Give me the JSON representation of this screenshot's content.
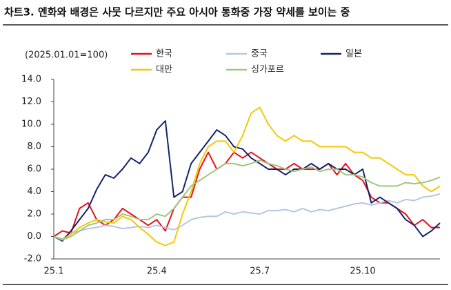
{
  "chart_data": {
    "type": "line",
    "title": "차트3. 엔화와 배경은 사뭇 다르지만 주요 아시아 통화중 가장 약세를 보이는 중",
    "subtitle": "(2025.01.01=100)",
    "categories": [
      "25.1",
      null,
      null,
      null,
      null,
      null,
      null,
      null,
      null,
      null,
      null,
      null,
      "25.4",
      null,
      null,
      null,
      null,
      null,
      null,
      null,
      null,
      null,
      null,
      null,
      "25.7",
      null,
      null,
      null,
      null,
      null,
      null,
      null,
      null,
      null,
      null,
      null,
      "25.10",
      null,
      null,
      null,
      null,
      null,
      null,
      null,
      null,
      null
    ],
    "ylim": [
      -2,
      14
    ],
    "yticks": [
      {
        "value": -2,
        "label": "-2.0"
      },
      {
        "value": 0,
        "label": "0.0"
      },
      {
        "value": 2,
        "label": "2.0"
      },
      {
        "value": 4,
        "label": "4.0"
      },
      {
        "value": 6,
        "label": "6.0"
      },
      {
        "value": 8,
        "label": "8.0"
      },
      {
        "value": 10,
        "label": "10.0"
      },
      {
        "value": 12,
        "label": "12.0"
      },
      {
        "value": 14,
        "label": "14.0"
      }
    ],
    "series": [
      {
        "name": "한국",
        "color": "#e8101a",
        "values": [
          0,
          0.5,
          0.3,
          2.5,
          3.0,
          1.5,
          1.0,
          1.5,
          2.5,
          2.0,
          1.5,
          1.0,
          1.5,
          0.5,
          2.5,
          3.5,
          3.5,
          6.0,
          7.5,
          6.0,
          6.5,
          7.5,
          7.0,
          7.5,
          7.0,
          6.5,
          6.0,
          6.0,
          6.5,
          6.0,
          6.0,
          6.0,
          6.5,
          5.5,
          6.5,
          5.5,
          5.0,
          3.5,
          3.0,
          3.0,
          2.5,
          2.0,
          1.0,
          1.5,
          0.8,
          0.8
        ]
      },
      {
        "name": "중국",
        "color": "#b4c7e0",
        "values": [
          0,
          -0.2,
          0.3,
          0.5,
          0.7,
          0.8,
          1.0,
          0.9,
          0.7,
          0.8,
          0.9,
          0.8,
          1.0,
          0.8,
          0.6,
          1.0,
          1.5,
          1.7,
          1.8,
          1.8,
          2.2,
          2.0,
          2.2,
          2.1,
          2.0,
          2.3,
          2.3,
          2.4,
          2.2,
          2.5,
          2.2,
          2.4,
          2.3,
          2.5,
          2.7,
          2.9,
          3.0,
          2.8,
          3.0,
          3.2,
          3.0,
          3.3,
          3.2,
          3.5,
          3.6,
          3.8
        ]
      },
      {
        "name": "일본",
        "color": "#12236b",
        "values": [
          0,
          -0.4,
          0.5,
          1.5,
          2.5,
          4.2,
          5.5,
          5.2,
          6.0,
          7.0,
          6.5,
          7.5,
          9.5,
          10.3,
          3.5,
          4.0,
          6.5,
          7.5,
          8.5,
          9.5,
          9.0,
          8.0,
          7.8,
          7.0,
          6.5,
          6.0,
          6.0,
          5.5,
          6.0,
          6.0,
          6.5,
          6.0,
          6.5,
          6.0,
          6.0,
          5.5,
          6.0,
          3.0,
          3.5,
          3.0,
          2.5,
          1.5,
          1.0,
          0.0,
          0.5,
          1.2
        ]
      },
      {
        "name": "대만",
        "color": "#f5c800",
        "values": [
          0,
          -0.3,
          0.2,
          0.8,
          1.2,
          1.5,
          1.3,
          1.2,
          1.8,
          1.5,
          0.8,
          0.2,
          -0.5,
          -0.8,
          -0.5,
          2.0,
          4.0,
          6.5,
          8.0,
          8.5,
          8.5,
          7.5,
          9.0,
          11.0,
          11.5,
          10.0,
          9.0,
          8.5,
          9.0,
          8.5,
          8.5,
          8.0,
          8.0,
          8.0,
          8.0,
          7.5,
          7.5,
          7.0,
          7.0,
          6.5,
          6.0,
          5.5,
          5.5,
          4.5,
          4.0,
          4.5
        ]
      },
      {
        "name": "싱가포르",
        "color": "#9cc77e",
        "values": [
          0,
          -0.3,
          0.0,
          0.5,
          1.0,
          1.2,
          1.5,
          1.5,
          2.0,
          1.8,
          1.5,
          1.5,
          2.0,
          1.8,
          2.5,
          3.5,
          4.5,
          5.0,
          5.5,
          6.0,
          6.5,
          6.5,
          6.3,
          6.5,
          6.8,
          6.5,
          6.3,
          6.0,
          5.8,
          6.0,
          6.2,
          5.8,
          6.0,
          6.0,
          5.5,
          5.5,
          5.3,
          4.8,
          4.5,
          4.5,
          4.5,
          4.8,
          4.7,
          4.8,
          5.0,
          5.3
        ]
      }
    ]
  }
}
